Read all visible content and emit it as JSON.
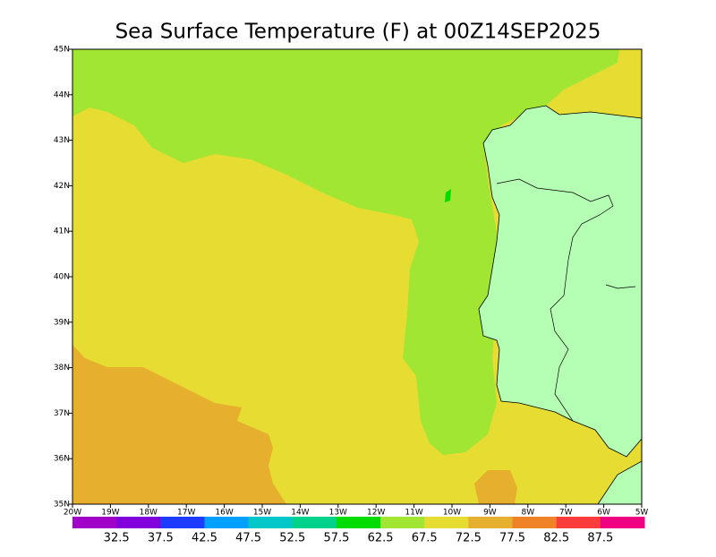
{
  "title": "Sea Surface Temperature (F) at 00Z14SEP2025",
  "lat_ticks": [
    {
      "value": 35,
      "label": "35N"
    },
    {
      "value": 36,
      "label": "36N"
    },
    {
      "value": 37,
      "label": "37N"
    },
    {
      "value": 38,
      "label": "38N"
    },
    {
      "value": 39,
      "label": "39N"
    },
    {
      "value": 40,
      "label": "40N"
    },
    {
      "value": 41,
      "label": "41N"
    },
    {
      "value": 42,
      "label": "42N"
    },
    {
      "value": 43,
      "label": "43N"
    },
    {
      "value": 44,
      "label": "44N"
    },
    {
      "value": 45,
      "label": "45N"
    }
  ],
  "lon_ticks": [
    {
      "value": -20,
      "label": "20W"
    },
    {
      "value": -19,
      "label": "19W"
    },
    {
      "value": -18,
      "label": "18W"
    },
    {
      "value": -17,
      "label": "17W"
    },
    {
      "value": -16,
      "label": "16W"
    },
    {
      "value": -15,
      "label": "15W"
    },
    {
      "value": -14,
      "label": "14W"
    },
    {
      "value": -13,
      "label": "13W"
    },
    {
      "value": -12,
      "label": "12W"
    },
    {
      "value": -11,
      "label": "11W"
    },
    {
      "value": -10,
      "label": "10W"
    },
    {
      "value": -9,
      "label": "9W"
    },
    {
      "value": -8,
      "label": "8W"
    },
    {
      "value": -7,
      "label": "7W"
    },
    {
      "value": -6,
      "label": "6W"
    },
    {
      "value": -5,
      "label": "5W"
    }
  ],
  "colorbar": {
    "levels": [
      32.5,
      37.5,
      42.5,
      47.5,
      52.5,
      57.5,
      62.5,
      67.5,
      72.5,
      77.5,
      82.5,
      87.5
    ],
    "colors": [
      "#a000c8",
      "#8200dc",
      "#1e3cff",
      "#00a0ff",
      "#00c8c8",
      "#00d28c",
      "#00dc00",
      "#a0e632",
      "#e6dc32",
      "#e6af2d",
      "#f08228",
      "#fa3c3c",
      "#f00082"
    ]
  }
}
